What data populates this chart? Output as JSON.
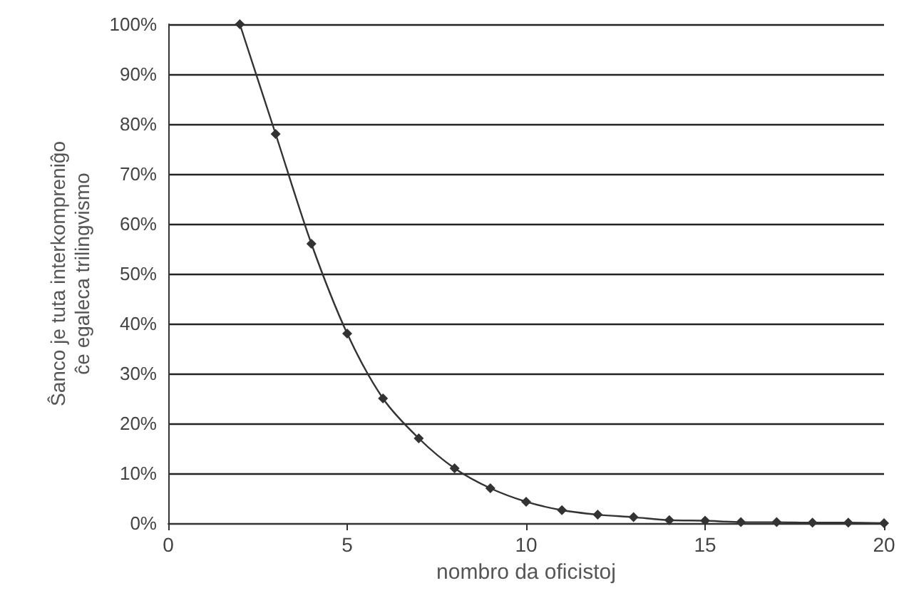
{
  "chart_data": {
    "type": "line",
    "xlabel": "nombro da oficistoj",
    "ylabel": "Ŝanco je tuta interkompreniĝo\nĉe egaleca trilingvismo",
    "x": [
      2,
      3,
      4,
      5,
      6,
      7,
      8,
      9,
      10,
      11,
      12,
      13,
      14,
      15,
      16,
      17,
      18,
      19,
      20
    ],
    "series": [
      {
        "color": "#333333",
        "values": [
          100,
          78,
          56,
          38,
          25,
          17,
          11,
          7,
          4.3,
          2.6,
          1.7,
          1.2,
          0.6,
          0.5,
          0.2,
          0.2,
          0.1,
          0.1,
          0
        ]
      }
    ],
    "xlim": [
      0,
      20
    ],
    "xticks": [
      0,
      5,
      10,
      15,
      20
    ],
    "ylim": [
      0,
      100
    ],
    "yticks": [
      {
        "value": 0,
        "label": "0%"
      },
      {
        "value": 10,
        "label": "10%"
      },
      {
        "value": 20,
        "label": "20%"
      },
      {
        "value": 30,
        "label": "30%"
      },
      {
        "value": 40,
        "label": "40%"
      },
      {
        "value": 50,
        "label": "50%"
      },
      {
        "value": 60,
        "label": "60%"
      },
      {
        "value": 70,
        "label": "70%"
      },
      {
        "value": 80,
        "label": "80%"
      },
      {
        "value": 90,
        "label": "90%"
      },
      {
        "value": 100,
        "label": "100%"
      }
    ],
    "grid": "y",
    "marker": "diamond",
    "line_style": "solid"
  }
}
